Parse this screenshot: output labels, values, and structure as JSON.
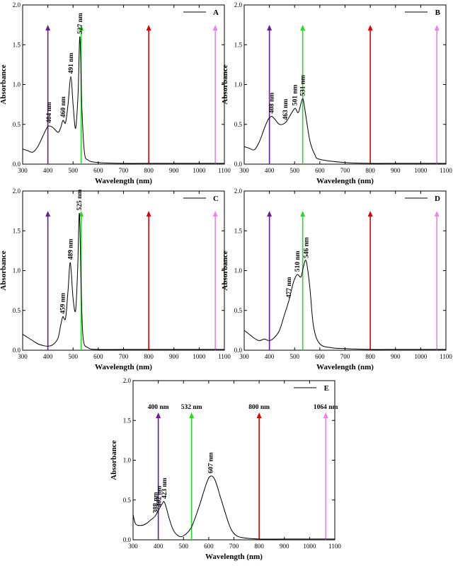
{
  "chart_data": [
    {
      "type": "line",
      "panel": "A",
      "xlabel": "Wavelength (nm)",
      "ylabel": "Absorbance",
      "xlim": [
        300,
        1100
      ],
      "ylim": [
        0,
        2.0
      ],
      "xticks": [
        300,
        400,
        500,
        600,
        700,
        800,
        900,
        1000,
        1100
      ],
      "yticks": [
        0.0,
        0.5,
        1.0,
        1.5,
        2.0
      ],
      "x": [
        300,
        320,
        340,
        360,
        380,
        395,
        404,
        420,
        440,
        450,
        460,
        470,
        480,
        491,
        500,
        510,
        520,
        527,
        535,
        545,
        560,
        600,
        700,
        800,
        900,
        1000,
        1100
      ],
      "y": [
        0.19,
        0.17,
        0.15,
        0.22,
        0.35,
        0.45,
        0.48,
        0.46,
        0.4,
        0.45,
        0.55,
        0.52,
        0.75,
        1.1,
        0.75,
        0.45,
        0.9,
        1.6,
        0.7,
        0.15,
        0.05,
        0.02,
        0.01,
        0.01,
        0.01,
        0.01,
        0.01
      ],
      "peaks": [
        {
          "x": 404,
          "y": 0.48,
          "label": "404 nm"
        },
        {
          "x": 460,
          "y": 0.55,
          "label": "460 nm"
        },
        {
          "x": 491,
          "y": 1.1,
          "label": "491 nm"
        },
        {
          "x": 527,
          "y": 1.6,
          "label": "527 nm"
        }
      ],
      "lasers": [
        {
          "wavelength": 400,
          "color": "#6a1b9a"
        },
        {
          "wavelength": 532,
          "color": "#22dd22"
        },
        {
          "wavelength": 800,
          "color": "#e00000"
        },
        {
          "wavelength": 1064,
          "color": "#ee82ee"
        }
      ],
      "laser_top": 1.75,
      "legend": "A",
      "show_laser_labels": false
    },
    {
      "type": "line",
      "panel": "B",
      "xlabel": "Wavelength (nm)",
      "ylabel": "Absorbance",
      "xlim": [
        300,
        1100
      ],
      "ylim": [
        0,
        2.0
      ],
      "xticks": [
        300,
        400,
        500,
        600,
        700,
        800,
        900,
        1000,
        1100
      ],
      "yticks": [
        0.0,
        0.5,
        1.0,
        1.5,
        2.0
      ],
      "x": [
        300,
        320,
        340,
        360,
        380,
        395,
        408,
        420,
        440,
        463,
        480,
        501,
        515,
        531,
        540,
        560,
        580,
        600,
        700,
        800,
        900,
        1000,
        1100
      ],
      "y": [
        0.22,
        0.2,
        0.18,
        0.28,
        0.45,
        0.56,
        0.6,
        0.57,
        0.5,
        0.52,
        0.6,
        0.7,
        0.65,
        0.82,
        0.7,
        0.3,
        0.12,
        0.06,
        0.02,
        0.01,
        0.01,
        0.01,
        0.01
      ],
      "peaks": [
        {
          "x": 408,
          "y": 0.6,
          "label": "408 nm"
        },
        {
          "x": 463,
          "y": 0.52,
          "label": "463 nm"
        },
        {
          "x": 501,
          "y": 0.7,
          "label": "501 nm"
        },
        {
          "x": 531,
          "y": 0.82,
          "label": "531 nm"
        }
      ],
      "lasers": [
        {
          "wavelength": 400,
          "color": "#6a1b9a"
        },
        {
          "wavelength": 532,
          "color": "#22dd22"
        },
        {
          "wavelength": 800,
          "color": "#e00000"
        },
        {
          "wavelength": 1064,
          "color": "#ee82ee"
        }
      ],
      "laser_top": 1.75,
      "legend": "B",
      "show_laser_labels": false
    },
    {
      "type": "line",
      "panel": "C",
      "xlabel": "Wavelength (nm)",
      "ylabel": "Absorbance",
      "xlim": [
        300,
        1100
      ],
      "ylim": [
        0,
        2.0
      ],
      "xticks": [
        300,
        400,
        500,
        600,
        700,
        800,
        900,
        1000,
        1100
      ],
      "yticks": [
        0.0,
        0.5,
        1.0,
        1.5,
        2.0
      ],
      "x": [
        300,
        320,
        340,
        360,
        380,
        400,
        420,
        440,
        450,
        459,
        470,
        480,
        489,
        500,
        510,
        518,
        525,
        532,
        540,
        560,
        600,
        700,
        800,
        900,
        1000,
        1100
      ],
      "y": [
        0.2,
        0.16,
        0.12,
        0.08,
        0.06,
        0.05,
        0.07,
        0.15,
        0.3,
        0.42,
        0.4,
        0.75,
        1.1,
        0.65,
        0.5,
        1.0,
        1.72,
        0.8,
        0.15,
        0.03,
        0.01,
        0.01,
        0.01,
        0.01,
        0.01,
        0.01
      ],
      "peaks": [
        {
          "x": 459,
          "y": 0.42,
          "label": "459 nm"
        },
        {
          "x": 489,
          "y": 1.1,
          "label": "489 nm"
        },
        {
          "x": 525,
          "y": 1.72,
          "label": "525 nm"
        }
      ],
      "lasers": [
        {
          "wavelength": 400,
          "color": "#6a1b9a"
        },
        {
          "wavelength": 532,
          "color": "#22dd22"
        },
        {
          "wavelength": 800,
          "color": "#e00000"
        },
        {
          "wavelength": 1064,
          "color": "#ee82ee"
        }
      ],
      "laser_top": 1.75,
      "legend": "C",
      "show_laser_labels": false
    },
    {
      "type": "line",
      "panel": "D",
      "xlabel": "Wavelength (nm)",
      "ylabel": "Absorbance",
      "xlim": [
        300,
        1100
      ],
      "ylim": [
        0,
        2.0
      ],
      "xticks": [
        300,
        400,
        500,
        600,
        700,
        800,
        900,
        1000,
        1100
      ],
      "yticks": [
        0.0,
        0.5,
        1.0,
        1.5,
        2.0
      ],
      "x": [
        300,
        320,
        340,
        360,
        380,
        400,
        420,
        440,
        460,
        477,
        495,
        510,
        525,
        535,
        546,
        560,
        575,
        600,
        650,
        700,
        800,
        900,
        1000,
        1100
      ],
      "y": [
        0.25,
        0.2,
        0.15,
        0.12,
        0.14,
        0.12,
        0.16,
        0.25,
        0.45,
        0.62,
        0.85,
        0.95,
        0.92,
        1.05,
        1.12,
        0.8,
        0.3,
        0.08,
        0.03,
        0.02,
        0.01,
        0.01,
        0.01,
        0.01
      ],
      "peaks": [
        {
          "x": 477,
          "y": 0.62,
          "label": "477 nm"
        },
        {
          "x": 510,
          "y": 0.95,
          "label": "510 nm"
        },
        {
          "x": 546,
          "y": 1.12,
          "label": "546 nm"
        }
      ],
      "lasers": [
        {
          "wavelength": 400,
          "color": "#6a1b9a"
        },
        {
          "wavelength": 532,
          "color": "#22dd22"
        },
        {
          "wavelength": 800,
          "color": "#e00000"
        },
        {
          "wavelength": 1064,
          "color": "#ee82ee"
        }
      ],
      "laser_top": 1.75,
      "legend": "D",
      "show_laser_labels": false
    },
    {
      "type": "line",
      "panel": "E",
      "xlabel": "Wavelength (nm)",
      "ylabel": "Absorbance",
      "xlim": [
        300,
        1100
      ],
      "ylim": [
        0,
        2.0
      ],
      "xticks": [
        300,
        400,
        500,
        600,
        700,
        800,
        900,
        1000,
        1100
      ],
      "yticks": [
        0.0,
        0.5,
        1.0,
        1.5,
        2.0
      ],
      "x": [
        300,
        310,
        330,
        350,
        370,
        388,
        402,
        415,
        423,
        432,
        445,
        460,
        480,
        500,
        530,
        560,
        590,
        607,
        625,
        650,
        680,
        700,
        730,
        800,
        900,
        1000,
        1100
      ],
      "y": [
        0.32,
        0.2,
        0.18,
        0.2,
        0.25,
        0.3,
        0.38,
        0.45,
        0.48,
        0.4,
        0.25,
        0.12,
        0.05,
        0.05,
        0.15,
        0.4,
        0.7,
        0.8,
        0.75,
        0.5,
        0.2,
        0.08,
        0.03,
        0.01,
        0.01,
        0.01,
        0.01
      ],
      "peaks": [
        {
          "x": 388,
          "y": 0.3,
          "label": "388 nm"
        },
        {
          "x": 402,
          "y": 0.38,
          "label": "402 nm"
        },
        {
          "x": 423,
          "y": 0.48,
          "label": "423 nm"
        },
        {
          "x": 607,
          "y": 0.8,
          "label": "607 nm"
        }
      ],
      "lasers": [
        {
          "wavelength": 400,
          "color": "#6a1b9a",
          "label": "400 nm"
        },
        {
          "wavelength": 532,
          "color": "#22dd22",
          "label": "532 nm"
        },
        {
          "wavelength": 800,
          "color": "#e00000",
          "label": "800 nm"
        },
        {
          "wavelength": 1064,
          "color": "#ee82ee",
          "label": "1064 nm"
        }
      ],
      "laser_top": 1.6,
      "legend": "E",
      "show_laser_labels": true
    }
  ]
}
